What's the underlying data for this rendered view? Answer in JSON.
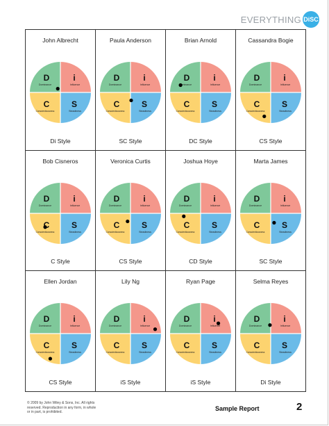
{
  "brand": {
    "word": "EVERYTHING",
    "badge": "DiSC"
  },
  "quadrants": {
    "d": {
      "letter": "D",
      "label": "Dominance",
      "color": "#7fc89a"
    },
    "i": {
      "letter": "i",
      "label": "Influence",
      "color": "#f4978b"
    },
    "c": {
      "letter": "C",
      "label": "Conscientiousness",
      "color": "#fcd36f"
    },
    "s": {
      "letter": "S",
      "label": "Steadiness",
      "color": "#6bbbe8"
    }
  },
  "people": [
    {
      "name": "John Albrecht",
      "style": "Di Style",
      "dot": {
        "angle_deg": 125,
        "radius": 0.16
      }
    },
    {
      "name": "Paula Anderson",
      "style": "SC Style",
      "dot": {
        "angle_deg": 275,
        "radius": 0.28
      }
    },
    {
      "name": "Brian Arnold",
      "style": "DC Style",
      "dot": {
        "angle_deg": 160,
        "radius": 0.75
      }
    },
    {
      "name": "Cassandra Bogie",
      "style": "CS Style",
      "dot": {
        "angle_deg": 255,
        "radius": 0.87
      }
    },
    {
      "name": "Bob Cisneros",
      "style": "C Style",
      "dot": {
        "angle_deg": 222,
        "radius": 0.72
      }
    },
    {
      "name": "Veronica Curtis",
      "style": "CS Style",
      "dot": {
        "angle_deg": 250,
        "radius": 0.3
      }
    },
    {
      "name": "Joshua Hoye",
      "style": "CD Style",
      "dot": {
        "angle_deg": 190,
        "radius": 0.6
      }
    },
    {
      "name": "Marta James",
      "style": "SC Style",
      "dot": {
        "angle_deg": 290,
        "radius": 0.35
      }
    },
    {
      "name": "Ellen Jordan",
      "style": "CS Style",
      "dot": {
        "angle_deg": 248,
        "radius": 0.95
      }
    },
    {
      "name": "Lily Ng",
      "style": "iS Style",
      "dot": {
        "angle_deg": 10,
        "radius": 0.88
      }
    },
    {
      "name": "Ryan Page",
      "style": "iS Style",
      "dot": {
        "angle_deg": 30,
        "radius": 0.72
      }
    },
    {
      "name": "Selma Reyes",
      "style": "Di Style",
      "dot": {
        "angle_deg": 95,
        "radius": 0.3
      }
    }
  ],
  "footer": {
    "copyright": "© 2009 by John Wiley & Sons, Inc. All rights reserved. Reproduction in any form, in whole or in part, is prohibited.",
    "title": "Sample Report",
    "page": "2"
  }
}
